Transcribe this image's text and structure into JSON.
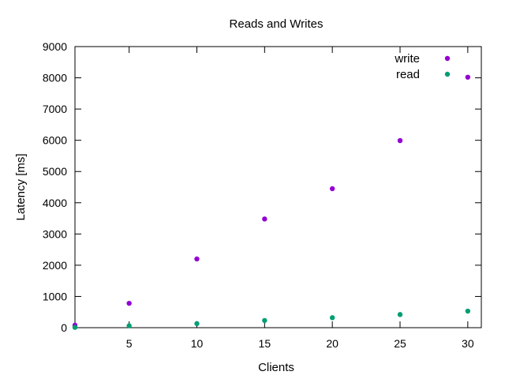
{
  "chart_data": {
    "type": "scatter",
    "title": "Reads and Writes",
    "xlabel": "Clients",
    "ylabel": "Latency [ms]",
    "xlim": [
      1,
      31
    ],
    "ylim": [
      0,
      9000
    ],
    "x_ticks": [
      5,
      10,
      15,
      20,
      25,
      30
    ],
    "y_ticks": [
      0,
      1000,
      2000,
      3000,
      4000,
      5000,
      6000,
      7000,
      8000,
      9000
    ],
    "grid": false,
    "legend_position": "top-right",
    "series": [
      {
        "name": "write",
        "color": "#9400d3",
        "marker": "filled-circle",
        "points": [
          [
            1,
            80
          ],
          [
            5,
            780
          ],
          [
            10,
            2200
          ],
          [
            15,
            3480
          ],
          [
            20,
            4450
          ],
          [
            25,
            5990
          ],
          [
            30,
            8020
          ]
        ]
      },
      {
        "name": "read",
        "color": "#009e73",
        "marker": "filled-circle",
        "points": [
          [
            1,
            10
          ],
          [
            5,
            60
          ],
          [
            10,
            130
          ],
          [
            15,
            230
          ],
          [
            20,
            320
          ],
          [
            25,
            420
          ],
          [
            30,
            530
          ]
        ]
      }
    ]
  }
}
